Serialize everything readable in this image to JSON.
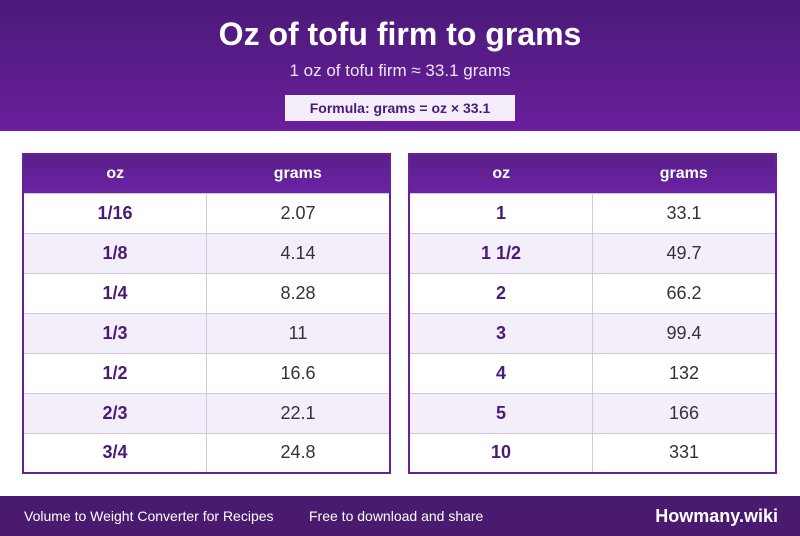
{
  "header": {
    "title": "Oz of tofu firm to grams",
    "subtitle": "1 oz of tofu firm ≈ 33.1 grams",
    "formula": "Formula: grams = oz × 33.1"
  },
  "tables": [
    {
      "headers": [
        "oz",
        "grams"
      ],
      "rows": [
        [
          "1/16",
          "2.07"
        ],
        [
          "1/8",
          "4.14"
        ],
        [
          "1/4",
          "8.28"
        ],
        [
          "1/3",
          "11"
        ],
        [
          "1/2",
          "16.6"
        ],
        [
          "2/3",
          "22.1"
        ],
        [
          "3/4",
          "24.8"
        ]
      ]
    },
    {
      "headers": [
        "oz",
        "grams"
      ],
      "rows": [
        [
          "1",
          "33.1"
        ],
        [
          "1 1/2",
          "49.7"
        ],
        [
          "2",
          "66.2"
        ],
        [
          "3",
          "99.4"
        ],
        [
          "4",
          "132"
        ],
        [
          "5",
          "166"
        ],
        [
          "10",
          "331"
        ]
      ]
    }
  ],
  "footer": {
    "left": "Volume to Weight Converter for Recipes",
    "middle": "Free to download and share",
    "brand": "Howmany.wiki"
  },
  "colors": {
    "header_bg": "#5a1d8a",
    "accent": "#6a1f9c",
    "row_alt": "#f3eefa",
    "footer_bg": "#4a1a6e"
  }
}
